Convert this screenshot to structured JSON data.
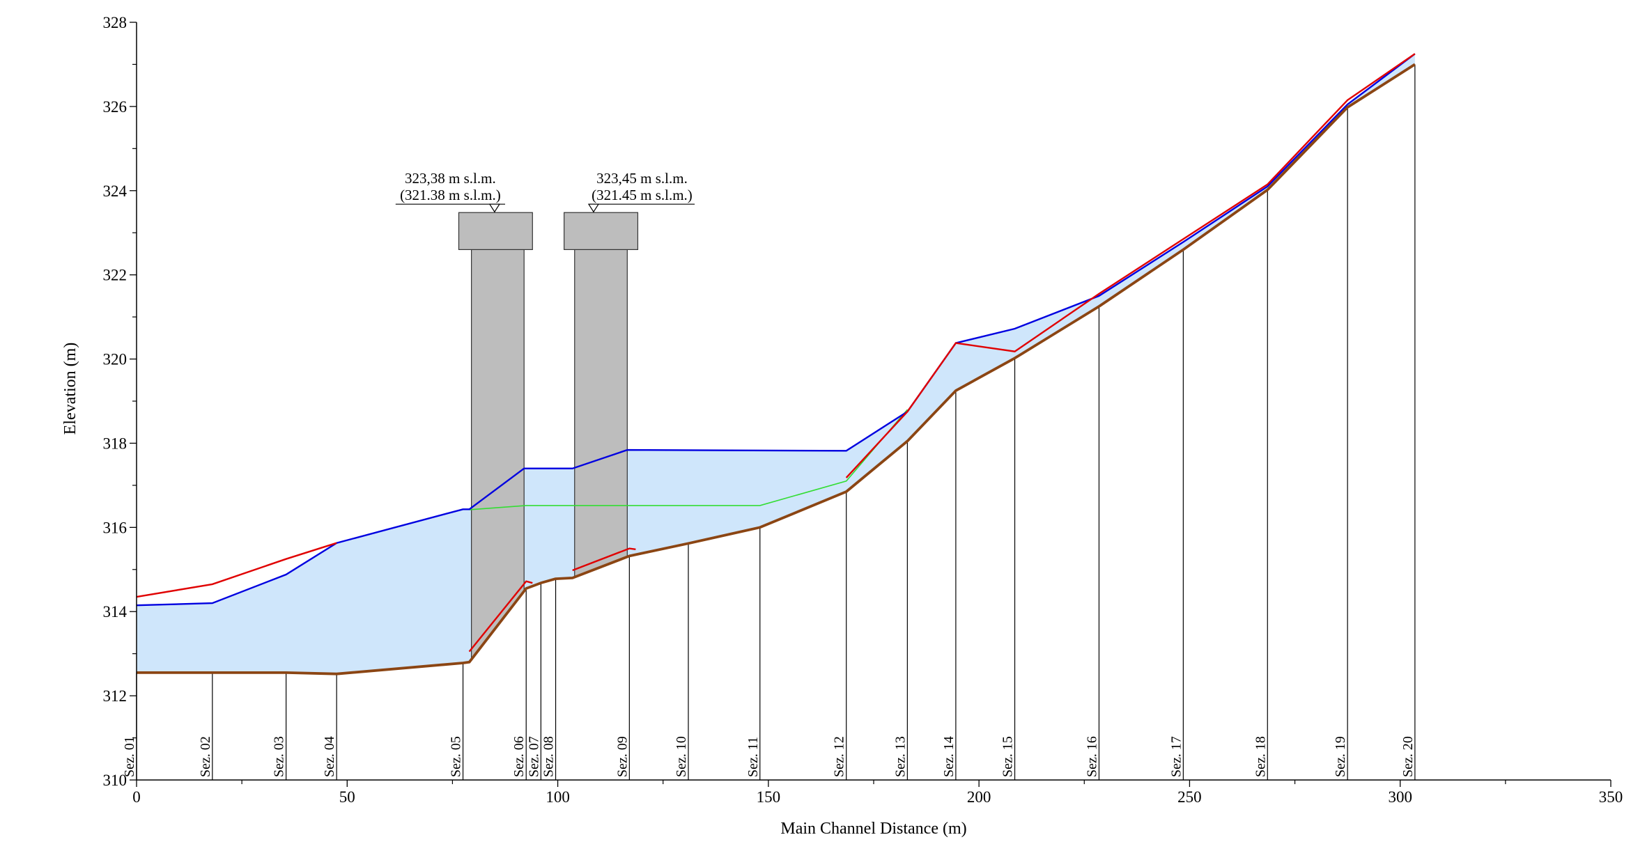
{
  "chart_data": {
    "type": "line",
    "xlabel": "Main Channel Distance (m)",
    "ylabel": "Elevation (m)",
    "xlim": [
      0,
      350
    ],
    "ylim": [
      310,
      328
    ],
    "x_ticks": [
      "0",
      "50",
      "100",
      "150",
      "200",
      "250",
      "300",
      "350"
    ],
    "y_ticks": [
      "310",
      "312",
      "314",
      "316",
      "318",
      "320",
      "322",
      "324",
      "326",
      "328"
    ],
    "colors": {
      "water_fill": "#cfe6fb",
      "bed": "#8b4513",
      "water_surface": "#0000e0",
      "energy_grade": "#e00000",
      "critical_depth": "#33dd33",
      "bridge": "#bdbdbd"
    },
    "sections": [
      {
        "label": "Sez. 01",
        "x": 0
      },
      {
        "label": "Sez. 02",
        "x": 18
      },
      {
        "label": "Sez. 03",
        "x": 35.5
      },
      {
        "label": "Sez. 04",
        "x": 47.5
      },
      {
        "label": "Sez. 05",
        "x": 77.5
      },
      {
        "label": "Sez. 06",
        "x": 92.5
      },
      {
        "label": "Sez. 07",
        "x": 96
      },
      {
        "label": "Sez. 08",
        "x": 99.5
      },
      {
        "label": "Sez. 09",
        "x": 117
      },
      {
        "label": "Sez. 10",
        "x": 131
      },
      {
        "label": "Sez. 11",
        "x": 148
      },
      {
        "label": "Sez. 12",
        "x": 168.5
      },
      {
        "label": "Sez. 13",
        "x": 183
      },
      {
        "label": "Sez. 14",
        "x": 194.5
      },
      {
        "label": "Sez. 15",
        "x": 208.5
      },
      {
        "label": "Sez. 16",
        "x": 228.5
      },
      {
        "label": "Sez. 17",
        "x": 248.5
      },
      {
        "label": "Sez. 18",
        "x": 268.5
      },
      {
        "label": "Sez. 19",
        "x": 287.5
      },
      {
        "label": "Sez. 20",
        "x": 303.5
      }
    ],
    "series": [
      {
        "key": "bed",
        "x": [
          0,
          18,
          35.5,
          47.5,
          77.5,
          79,
          92.5,
          96,
          99.5,
          103.5,
          117,
          131,
          148,
          168.5,
          183,
          194.5,
          208.5,
          228.5,
          248.5,
          268.5,
          287.5,
          303.5
        ],
        "y": [
          312.55,
          312.55,
          312.55,
          312.52,
          312.78,
          312.8,
          314.55,
          314.68,
          314.78,
          314.8,
          315.32,
          315.62,
          316,
          316.85,
          318.05,
          319.25,
          320.02,
          321.25,
          322.6,
          324.02,
          325.98,
          327
        ]
      },
      {
        "key": "water_surface",
        "x": [
          0,
          18,
          35.5,
          47.5,
          77.5,
          79,
          92,
          103.5,
          116.5,
          168.5,
          183,
          194.5,
          208.5,
          228.5,
          248.5,
          268.5,
          287.5,
          303.5
        ],
        "y": [
          314.15,
          314.2,
          314.88,
          315.63,
          316.43,
          316.43,
          317.4,
          317.4,
          317.84,
          317.82,
          318.75,
          320.38,
          320.72,
          321.5,
          322.78,
          324.1,
          326.05,
          327.25
        ]
      },
      {
        "key": "energy_grade",
        "segments": [
          {
            "x": [
              0,
              18,
              35.5,
              47.5
            ],
            "y": [
              314.35,
              314.65,
              315.25,
              315.63
            ]
          },
          {
            "x": [
              79,
              92.5,
              94
            ],
            "y": [
              313.05,
              314.72,
              314.68
            ]
          },
          {
            "x": [
              103.5,
              117,
              118.5
            ],
            "y": [
              314.98,
              315.5,
              315.48
            ]
          },
          {
            "x": [
              168.5,
              183,
              194.5,
              208.5,
              228.5,
              248.5,
              268.5,
              287.5,
              303.5
            ],
            "y": [
              317.18,
              318.75,
              320.38,
              320.18,
              321.55,
              322.85,
              324.15,
              326.15,
              327.25
            ]
          }
        ]
      },
      {
        "key": "critical_depth",
        "x": [
          79,
          92.5,
          148,
          168.5,
          183
        ],
        "y": [
          316.42,
          316.52,
          316.52,
          317.1,
          318.8
        ]
      }
    ],
    "bridges": [
      {
        "x_start": 79.5,
        "x_end": 92,
        "deck_x_start": 76.5,
        "deck_x_end": 94,
        "deck_bottom": 322.6,
        "deck_top": 323.48,
        "label_line1": "323,38 m s.l.m.",
        "label_line2": "(321.38 m s.l.m.)",
        "marker_x": 85,
        "label_x_start": 61.5,
        "label_x_end": 87.5
      },
      {
        "x_start": 104,
        "x_end": 116.5,
        "deck_x_start": 101.5,
        "deck_x_end": 119,
        "deck_bottom": 322.6,
        "deck_top": 323.48,
        "label_line1": "323,45 m s.l.m.",
        "label_line2": "(321.45 m s.l.m.)",
        "marker_x": 108.5,
        "label_x_start": 107.5,
        "label_x_end": 132.5
      }
    ]
  }
}
